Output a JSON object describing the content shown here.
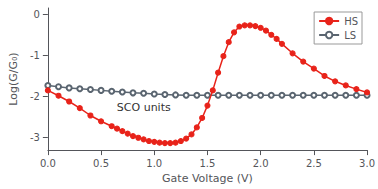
{
  "chart_data": {
    "type": "line",
    "xlabel": "Gate Voltage (V)",
    "ylabel": "Log(G/G₀)",
    "xlim": [
      0,
      3.0
    ],
    "ylim": [
      -3.3,
      0.15
    ],
    "xticks": [
      {
        "value": 0.0,
        "label": "0.0"
      },
      0.5,
      {
        "value": 1.0,
        "label": "1.0"
      },
      1.5,
      {
        "value": 2.0,
        "label": "2.0"
      },
      2.5,
      {
        "value": 3.0,
        "label": "3.0"
      }
    ],
    "yticks": [
      0,
      -1,
      -2,
      -3
    ],
    "grid": false,
    "legend": "upper right",
    "annotations": [
      {
        "text": "SCO units"
      }
    ],
    "series": [
      {
        "name": "LS",
        "color": "#5a6570",
        "marker": "open_circle",
        "x": [
          0.0,
          0.1,
          0.2,
          0.3,
          0.4,
          0.5,
          0.6,
          0.7,
          0.8,
          0.9,
          1.0,
          1.1,
          1.2,
          1.3,
          1.4,
          1.5,
          1.6,
          1.7,
          1.8,
          1.9,
          2.0,
          2.1,
          2.2,
          2.3,
          2.4,
          2.5,
          2.6,
          2.7,
          2.8,
          2.9,
          3.0
        ],
        "values": [
          -1.73,
          -1.76,
          -1.79,
          -1.81,
          -1.83,
          -1.85,
          -1.87,
          -1.89,
          -1.91,
          -1.92,
          -1.94,
          -1.95,
          -1.96,
          -1.97,
          -1.97,
          -1.97,
          -1.97,
          -1.97,
          -1.97,
          -1.97,
          -1.97,
          -1.97,
          -1.97,
          -1.97,
          -1.97,
          -1.97,
          -1.97,
          -1.97,
          -1.97,
          -1.97,
          -1.97
        ]
      },
      {
        "name": "HS",
        "color": "#e8231a",
        "marker": "circle",
        "x": [
          0.0,
          0.1,
          0.2,
          0.3,
          0.4,
          0.5,
          0.6,
          0.65,
          0.7,
          0.75,
          0.8,
          0.85,
          0.9,
          0.95,
          1.0,
          1.05,
          1.1,
          1.15,
          1.2,
          1.25,
          1.3,
          1.35,
          1.4,
          1.45,
          1.5,
          1.55,
          1.6,
          1.65,
          1.7,
          1.75,
          1.8,
          1.85,
          1.9,
          1.95,
          2.0,
          2.05,
          2.1,
          2.15,
          2.2,
          2.3,
          2.4,
          2.5,
          2.6,
          2.7,
          2.8,
          2.9,
          3.0
        ],
        "values": [
          -1.85,
          -1.98,
          -2.12,
          -2.28,
          -2.46,
          -2.6,
          -2.72,
          -2.78,
          -2.84,
          -2.9,
          -2.96,
          -3.0,
          -3.04,
          -3.08,
          -3.1,
          -3.12,
          -3.13,
          -3.13,
          -3.12,
          -3.08,
          -3.02,
          -2.92,
          -2.75,
          -2.52,
          -2.22,
          -1.85,
          -1.42,
          -1.02,
          -0.68,
          -0.44,
          -0.3,
          -0.27,
          -0.27,
          -0.29,
          -0.33,
          -0.4,
          -0.5,
          -0.6,
          -0.72,
          -0.95,
          -1.15,
          -1.32,
          -1.5,
          -1.63,
          -1.73,
          -1.82,
          -1.9
        ]
      }
    ]
  }
}
